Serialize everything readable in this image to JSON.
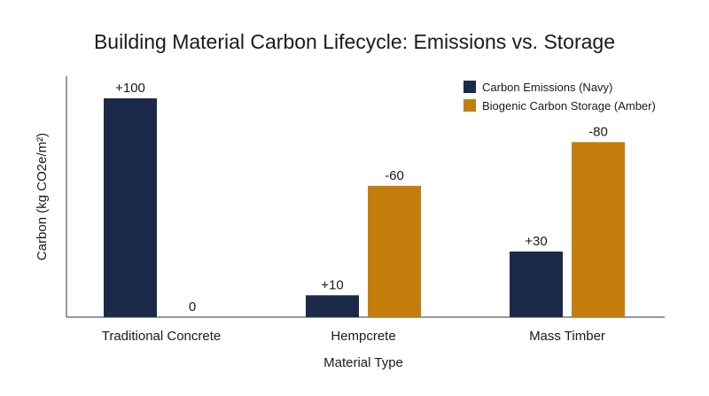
{
  "chart_data": {
    "type": "bar",
    "title": "Building Material Carbon Lifecycle: Emissions vs. Storage",
    "xlabel": "Material Type",
    "ylabel": "Carbon (kg CO2e/m²)",
    "categories": [
      "Traditional Concrete",
      "Hempcrete",
      "Mass Timber"
    ],
    "series": [
      {
        "name": "Carbon Emissions (Navy)",
        "color": "#1b2a4a",
        "values": [
          100,
          10,
          30
        ],
        "labels": [
          "+100",
          "+10",
          "+30"
        ]
      },
      {
        "name": "Biogenic Carbon Storage (Amber)",
        "color": "#c47d0a",
        "values": [
          0,
          60,
          80
        ],
        "labels": [
          "0",
          "-60",
          "-80"
        ]
      }
    ],
    "ylim": [
      0,
      110
    ],
    "grid": false,
    "legend": "top-right"
  }
}
